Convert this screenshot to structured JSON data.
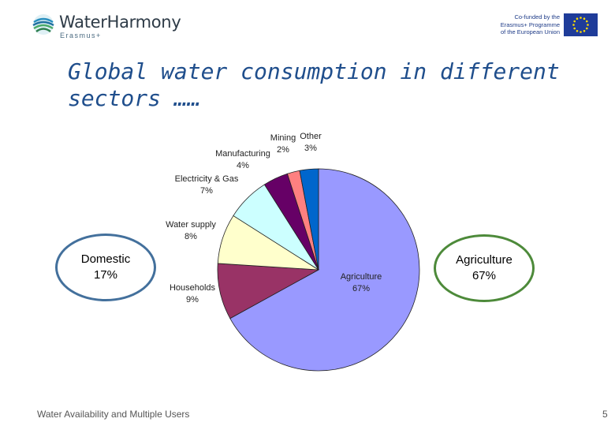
{
  "header": {
    "logo_text": "WaterHarmony",
    "logo_sub": "Erasmus+",
    "eu_line1": "Co-funded by the",
    "eu_line2": "Erasmus+ Programme",
    "eu_line3": "of the European Union"
  },
  "slide": {
    "title_line1": "Global water consumption in different",
    "title_line2": "sectors ……",
    "footer": "Water Availability and Multiple Users",
    "page_number": "5"
  },
  "callouts": {
    "domestic_name": "Domestic",
    "domestic_value": "17%",
    "agriculture_name": "Agriculture",
    "agriculture_value": "67%"
  },
  "chart_data": {
    "type": "pie",
    "slices": [
      {
        "label": "Agriculture",
        "value": 67,
        "value_label": "67%",
        "color": "#9999ff"
      },
      {
        "label": "Households",
        "value": 9,
        "value_label": "9%",
        "color": "#993366"
      },
      {
        "label": "Water supply",
        "value": 8,
        "value_label": "8%",
        "color": "#ffffcc"
      },
      {
        "label": "Electricity & Gas",
        "value": 7,
        "value_label": "7%",
        "color": "#ccffff"
      },
      {
        "label": "Manufacturing",
        "value": 4,
        "value_label": "4%",
        "color": "#660066"
      },
      {
        "label": "Mining",
        "value": 2,
        "value_label": "2%",
        "color": "#ff8080"
      },
      {
        "label": "Other",
        "value": 3,
        "value_label": "3%",
        "color": "#0066cc"
      }
    ],
    "start": "12 o'clock",
    "direction": "clockwise",
    "legend": "none",
    "labels": "outside"
  },
  "colors": {
    "title": "#1f4e8c",
    "domestic_border": "#43709c",
    "agriculture_border": "#4d8a3a"
  }
}
